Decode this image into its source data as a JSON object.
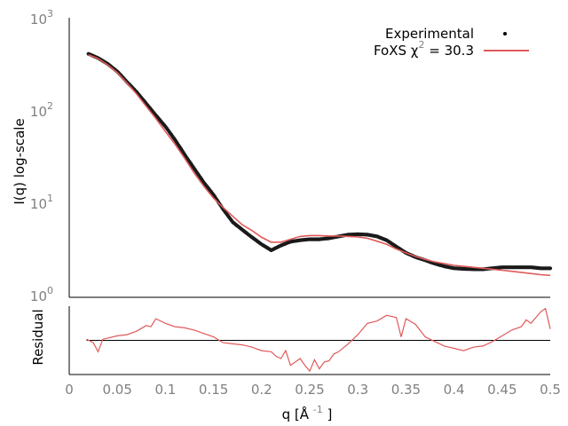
{
  "chart_data": [
    {
      "type": "line",
      "panel": "main",
      "y_scale": "log",
      "xlim": [
        0,
        0.5
      ],
      "ylim": [
        1,
        1000
      ],
      "ylabel": "I(q) log-scale",
      "y_tick_labels": [
        {
          "value": 1,
          "base": "10",
          "exp": "0"
        },
        {
          "value": 10,
          "base": "10",
          "exp": "1"
        },
        {
          "value": 100,
          "base": "10",
          "exp": "2"
        },
        {
          "value": 1000,
          "base": "10",
          "exp": "3"
        }
      ],
      "legend": {
        "placement": "top-right",
        "entries": [
          {
            "label": "Experimental",
            "marker": "point",
            "color": "#000000"
          },
          {
            "label_prefix": "FoXS χ",
            "label_sup": "2",
            "label_suffix": " = 30.3",
            "marker": "line",
            "color": "#e05a5a"
          }
        ]
      },
      "series": [
        {
          "name": "Experimental",
          "style": "points",
          "color": "#1a1a1a",
          "x": [
            0.02,
            0.03,
            0.04,
            0.05,
            0.06,
            0.07,
            0.08,
            0.09,
            0.1,
            0.11,
            0.12,
            0.13,
            0.14,
            0.15,
            0.16,
            0.17,
            0.18,
            0.19,
            0.2,
            0.21,
            0.22,
            0.23,
            0.24,
            0.25,
            0.26,
            0.27,
            0.28,
            0.29,
            0.3,
            0.31,
            0.32,
            0.33,
            0.34,
            0.35,
            0.36,
            0.37,
            0.38,
            0.39,
            0.4,
            0.41,
            0.42,
            0.43,
            0.44,
            0.45,
            0.46,
            0.47,
            0.48,
            0.49,
            0.5
          ],
          "y": [
            410,
            370,
            320,
            265,
            205,
            160,
            120,
            90,
            68,
            49,
            34,
            24,
            17,
            12.6,
            8.8,
            6.4,
            5.3,
            4.4,
            3.7,
            3.2,
            3.6,
            3.95,
            4.1,
            4.2,
            4.2,
            4.3,
            4.5,
            4.7,
            4.75,
            4.7,
            4.5,
            4.1,
            3.5,
            3.0,
            2.7,
            2.5,
            2.3,
            2.15,
            2.05,
            2.02,
            2.0,
            2.0,
            2.05,
            2.1,
            2.1,
            2.1,
            2.1,
            2.05,
            2.05
          ]
        },
        {
          "name": "FoXS χ2 = 30.3",
          "style": "line",
          "color": "#e05a5a",
          "x": [
            0.02,
            0.03,
            0.04,
            0.05,
            0.06,
            0.07,
            0.08,
            0.09,
            0.1,
            0.11,
            0.12,
            0.13,
            0.14,
            0.15,
            0.16,
            0.17,
            0.18,
            0.19,
            0.2,
            0.21,
            0.22,
            0.23,
            0.24,
            0.25,
            0.26,
            0.27,
            0.28,
            0.29,
            0.3,
            0.31,
            0.32,
            0.33,
            0.34,
            0.35,
            0.36,
            0.37,
            0.38,
            0.39,
            0.4,
            0.41,
            0.42,
            0.43,
            0.44,
            0.45,
            0.46,
            0.47,
            0.48,
            0.49,
            0.5
          ],
          "y": [
            400,
            365,
            312,
            258,
            200,
            152,
            112,
            83,
            60,
            44,
            31,
            21.5,
            15.5,
            11.6,
            9.2,
            7.4,
            6.0,
            5.2,
            4.4,
            3.9,
            3.9,
            4.2,
            4.5,
            4.6,
            4.6,
            4.55,
            4.55,
            4.5,
            4.45,
            4.3,
            4.0,
            3.7,
            3.3,
            3.0,
            2.75,
            2.55,
            2.4,
            2.3,
            2.2,
            2.15,
            2.1,
            2.05,
            2.0,
            1.95,
            1.9,
            1.85,
            1.8,
            1.75,
            1.72
          ]
        }
      ]
    },
    {
      "type": "line",
      "panel": "residual",
      "xlim": [
        0,
        0.5
      ],
      "xlabel": "q [Å -1 ]",
      "xlabel_parts": {
        "pre": "q [Å ",
        "sup": "-1",
        "post": " ]"
      },
      "ylabel": "Residual",
      "x_ticks": [
        "0",
        "0.05",
        "0.1",
        "0.15",
        "0.2",
        "0.25",
        "0.3",
        "0.35",
        "0.4",
        "0.45",
        "0.5"
      ],
      "x_tick_values": [
        0,
        0.05,
        0.1,
        0.15,
        0.2,
        0.25,
        0.3,
        0.35,
        0.4,
        0.45,
        0.5
      ],
      "ylim": [
        -3,
        3
      ],
      "baseline": 0,
      "series": [
        {
          "name": "",
          "style": "line",
          "color": "#e05a5a",
          "x": [
            0.018,
            0.025,
            0.03,
            0.035,
            0.04,
            0.05,
            0.06,
            0.07,
            0.08,
            0.085,
            0.09,
            0.1,
            0.11,
            0.12,
            0.13,
            0.14,
            0.15,
            0.16,
            0.17,
            0.18,
            0.19,
            0.2,
            0.21,
            0.215,
            0.22,
            0.225,
            0.23,
            0.24,
            0.245,
            0.25,
            0.255,
            0.26,
            0.265,
            0.27,
            0.275,
            0.28,
            0.29,
            0.3,
            0.31,
            0.32,
            0.33,
            0.34,
            0.345,
            0.35,
            0.36,
            0.37,
            0.38,
            0.39,
            0.4,
            0.41,
            0.42,
            0.43,
            0.44,
            0.45,
            0.46,
            0.47,
            0.475,
            0.48,
            0.49,
            0.495,
            0.5
          ],
          "y": [
            0.1,
            -0.2,
            -1.0,
            0.1,
            0.2,
            0.4,
            0.5,
            0.8,
            1.3,
            1.2,
            1.9,
            1.5,
            1.2,
            1.1,
            0.9,
            0.6,
            0.3,
            -0.2,
            -0.3,
            -0.4,
            -0.6,
            -0.9,
            -1.0,
            -1.4,
            -1.6,
            -0.9,
            -2.2,
            -1.6,
            -2.2,
            -2.7,
            -1.7,
            -2.5,
            -1.9,
            -1.8,
            -1.2,
            -1.0,
            -0.3,
            0.5,
            1.5,
            1.7,
            2.2,
            2.0,
            0.3,
            1.9,
            1.4,
            0.3,
            -0.1,
            -0.5,
            -0.7,
            -0.9,
            -0.6,
            -0.5,
            -0.1,
            0.4,
            0.9,
            1.2,
            1.8,
            1.5,
            2.5,
            2.8,
            1.0
          ]
        }
      ]
    }
  ]
}
